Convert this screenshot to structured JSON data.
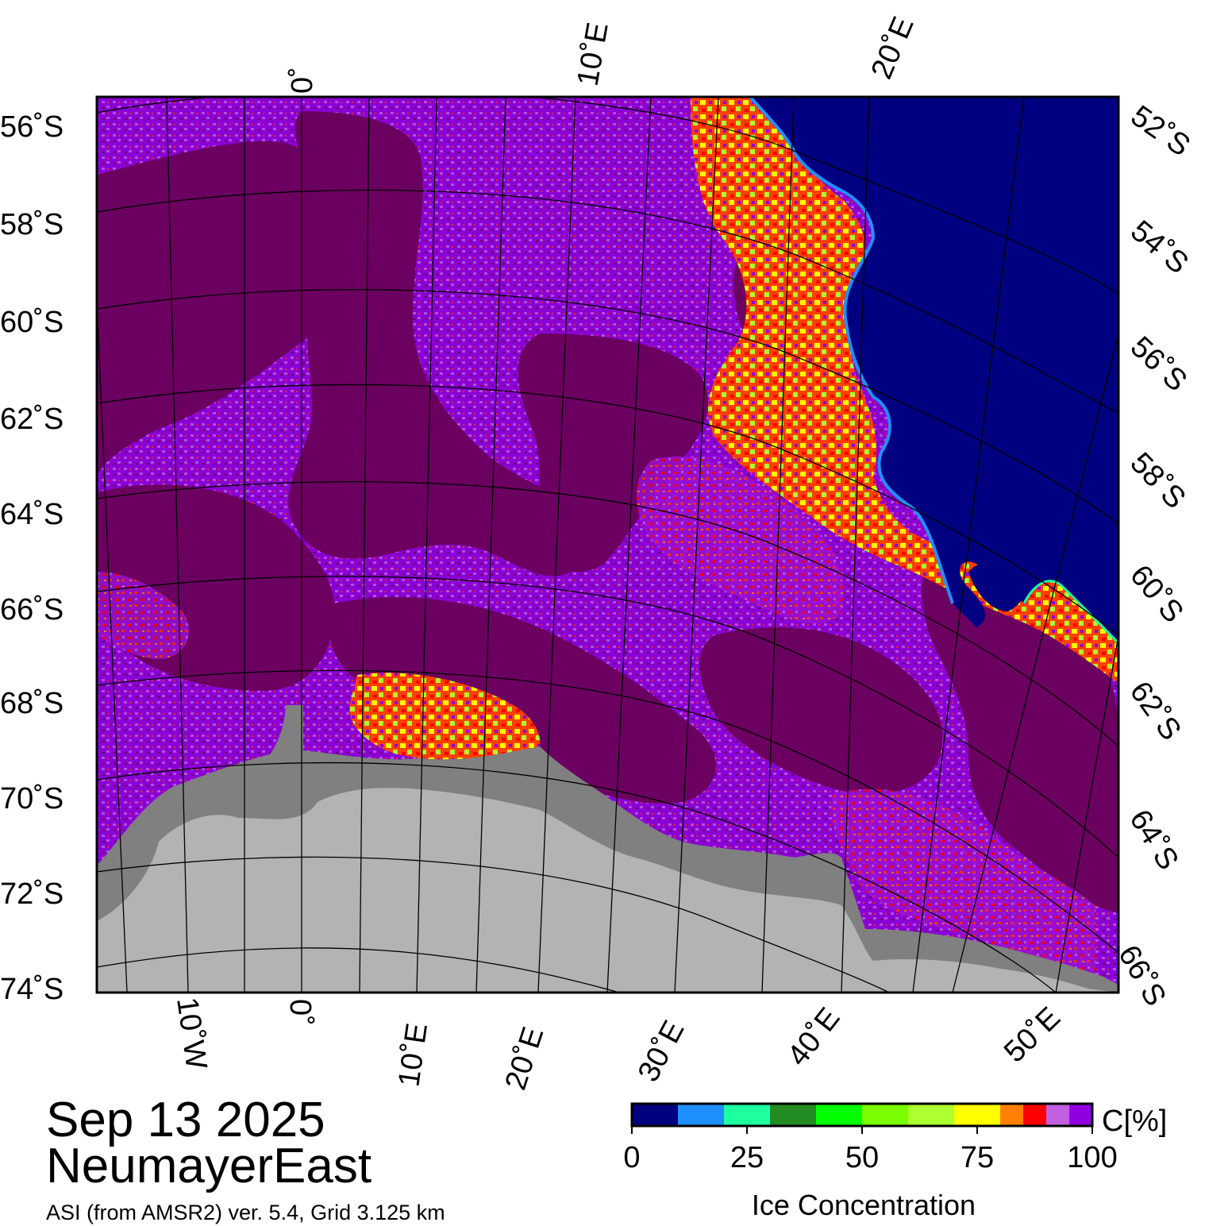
{
  "map": {
    "date": "Sep 13 2025",
    "region": "NeumayerEast",
    "source": "ASI (from AMSR2) ver. 5.4,  Grid 3.125 km",
    "lat_labels_left": [
      "56˚S",
      "58˚S",
      "60˚S",
      "62˚S",
      "64˚S",
      "66˚S",
      "68˚S",
      "70˚S",
      "72˚S",
      "74˚S"
    ],
    "lat_labels_right": [
      "52˚S",
      "54˚S",
      "56˚S",
      "58˚S",
      "60˚S",
      "62˚S",
      "64˚S",
      "66˚S"
    ],
    "lon_labels_top": [
      "0˚",
      "10˚E",
      "20˚E"
    ],
    "lon_labels_bottom": [
      "10˚W",
      "0˚",
      "10˚E",
      "20˚E",
      "30˚E",
      "40˚E",
      "50˚E"
    ],
    "colors": {
      "open_water": "#000080",
      "land": "#b3b3b3",
      "ice_shelf": "#808080",
      "ice_high": "#6b0060",
      "ice_mid": "#8a00d4"
    }
  },
  "legend": {
    "title": "Ice Concentration",
    "unit": "C[%]",
    "ticks": [
      "0",
      "25",
      "50",
      "75",
      "100"
    ],
    "range": [
      0,
      100
    ],
    "bins": [
      {
        "from": 0,
        "to": 10,
        "color": "#000080"
      },
      {
        "from": 10,
        "to": 20,
        "color": "#1e90ff"
      },
      {
        "from": 20,
        "to": 30,
        "color": "#1effa0"
      },
      {
        "from": 30,
        "to": 40,
        "color": "#228b22"
      },
      {
        "from": 40,
        "to": 50,
        "color": "#00ff00"
      },
      {
        "from": 50,
        "to": 60,
        "color": "#7cfc00"
      },
      {
        "from": 60,
        "to": 70,
        "color": "#adff2f"
      },
      {
        "from": 70,
        "to": 80,
        "color": "#ffff00"
      },
      {
        "from": 80,
        "to": 85,
        "color": "#ff8000"
      },
      {
        "from": 85,
        "to": 90,
        "color": "#ff0000"
      },
      {
        "from": 90,
        "to": 95,
        "color": "#c060e0"
      },
      {
        "from": 95,
        "to": 100,
        "color": "#9000e0"
      }
    ]
  }
}
